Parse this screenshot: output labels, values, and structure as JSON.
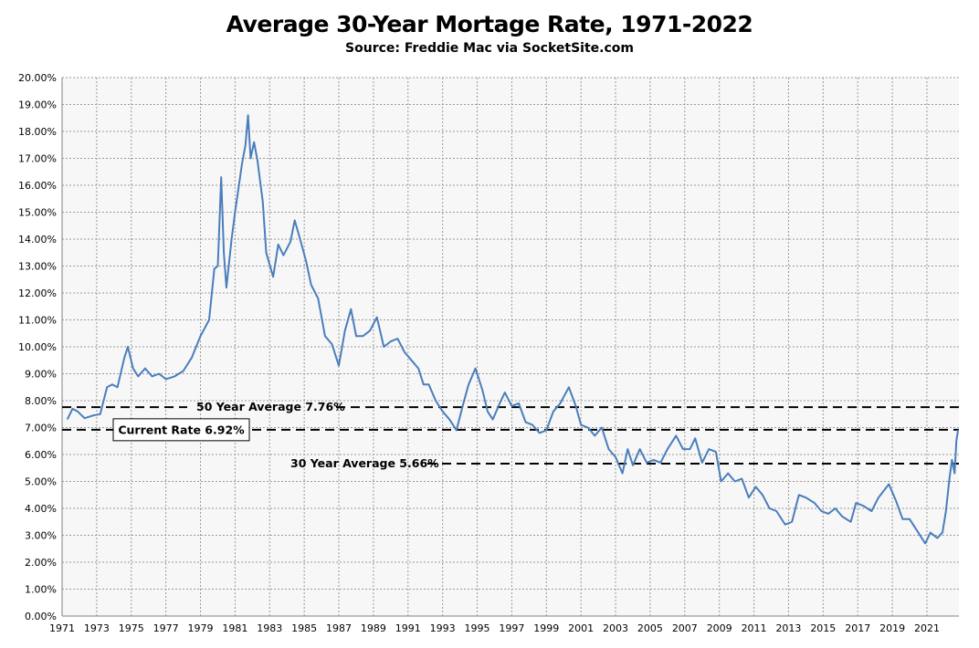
{
  "title": "Average 30-Year Mortage Rate, 1971-2022",
  "subtitle": "Source: Freddie Mac via SocketSite.com",
  "chart_data": {
    "type": "line",
    "title": "Average 30-Year Mortage Rate, 1971-2022",
    "subtitle": "Source: Freddie Mac via SocketSite.com",
    "xlabel": "",
    "ylabel": "",
    "xlim": [
      1971,
      2022.85
    ],
    "ylim": [
      0,
      20
    ],
    "grid": true,
    "y_ticks": [
      "0.00%",
      "1.00%",
      "2.00%",
      "3.00%",
      "4.00%",
      "5.00%",
      "6.00%",
      "7.00%",
      "8.00%",
      "9.00%",
      "10.00%",
      "11.00%",
      "12.00%",
      "13.00%",
      "14.00%",
      "15.00%",
      "16.00%",
      "17.00%",
      "18.00%",
      "19.00%",
      "20.00%"
    ],
    "x_ticks": [
      "1971",
      "1973",
      "1975",
      "1977",
      "1979",
      "1981",
      "1983",
      "1985",
      "1987",
      "1989",
      "1991",
      "1993",
      "1995",
      "1997",
      "1999",
      "2001",
      "2003",
      "2005",
      "2007",
      "2009",
      "2011",
      "2013",
      "2015",
      "2017",
      "2019",
      "2021"
    ],
    "line_color": "#4a7ebb",
    "series": [
      {
        "name": "",
        "points": [
          [
            1971.3,
            7.3
          ],
          [
            1971.6,
            7.7
          ],
          [
            1971.9,
            7.6
          ],
          [
            1972.3,
            7.35
          ],
          [
            1972.8,
            7.45
          ],
          [
            1973.2,
            7.5
          ],
          [
            1973.6,
            8.5
          ],
          [
            1973.9,
            8.6
          ],
          [
            1974.2,
            8.5
          ],
          [
            1974.6,
            9.6
          ],
          [
            1974.8,
            10.0
          ],
          [
            1975.1,
            9.2
          ],
          [
            1975.4,
            8.9
          ],
          [
            1975.8,
            9.2
          ],
          [
            1976.2,
            8.9
          ],
          [
            1976.6,
            9.0
          ],
          [
            1977.0,
            8.8
          ],
          [
            1977.5,
            8.9
          ],
          [
            1978.0,
            9.1
          ],
          [
            1978.5,
            9.6
          ],
          [
            1979.0,
            10.4
          ],
          [
            1979.5,
            11.0
          ],
          [
            1979.8,
            12.9
          ],
          [
            1980.0,
            13.0
          ],
          [
            1980.2,
            16.3
          ],
          [
            1980.35,
            13.5
          ],
          [
            1980.5,
            12.2
          ],
          [
            1980.8,
            14.0
          ],
          [
            1981.0,
            15.0
          ],
          [
            1981.4,
            16.8
          ],
          [
            1981.6,
            17.5
          ],
          [
            1981.75,
            18.6
          ],
          [
            1981.9,
            17.0
          ],
          [
            1982.1,
            17.6
          ],
          [
            1982.3,
            16.9
          ],
          [
            1982.6,
            15.4
          ],
          [
            1982.8,
            13.5
          ],
          [
            1983.2,
            12.6
          ],
          [
            1983.5,
            13.8
          ],
          [
            1983.8,
            13.4
          ],
          [
            1984.2,
            13.9
          ],
          [
            1984.45,
            14.7
          ],
          [
            1984.8,
            13.9
          ],
          [
            1985.1,
            13.2
          ],
          [
            1985.4,
            12.3
          ],
          [
            1985.8,
            11.8
          ],
          [
            1986.2,
            10.4
          ],
          [
            1986.6,
            10.1
          ],
          [
            1987.0,
            9.3
          ],
          [
            1987.35,
            10.6
          ],
          [
            1987.7,
            11.4
          ],
          [
            1988.0,
            10.4
          ],
          [
            1988.4,
            10.4
          ],
          [
            1988.8,
            10.6
          ],
          [
            1989.2,
            11.1
          ],
          [
            1989.6,
            10.0
          ],
          [
            1990.0,
            10.2
          ],
          [
            1990.4,
            10.3
          ],
          [
            1990.8,
            9.8
          ],
          [
            1991.2,
            9.5
          ],
          [
            1991.6,
            9.2
          ],
          [
            1991.9,
            8.6
          ],
          [
            1992.2,
            8.6
          ],
          [
            1992.6,
            8.0
          ],
          [
            1993.0,
            7.6
          ],
          [
            1993.4,
            7.3
          ],
          [
            1993.8,
            6.9
          ],
          [
            1994.2,
            7.9
          ],
          [
            1994.5,
            8.6
          ],
          [
            1994.9,
            9.2
          ],
          [
            1995.3,
            8.4
          ],
          [
            1995.6,
            7.6
          ],
          [
            1995.9,
            7.3
          ],
          [
            1996.3,
            7.9
          ],
          [
            1996.6,
            8.3
          ],
          [
            1997.0,
            7.8
          ],
          [
            1997.4,
            7.9
          ],
          [
            1997.8,
            7.2
          ],
          [
            1998.2,
            7.1
          ],
          [
            1998.6,
            6.8
          ],
          [
            1999.0,
            6.9
          ],
          [
            1999.4,
            7.6
          ],
          [
            1999.8,
            7.9
          ],
          [
            2000.3,
            8.5
          ],
          [
            2000.7,
            7.8
          ],
          [
            2001.0,
            7.1
          ],
          [
            2001.4,
            7.0
          ],
          [
            2001.8,
            6.7
          ],
          [
            2002.2,
            7.0
          ],
          [
            2002.6,
            6.2
          ],
          [
            2003.0,
            5.9
          ],
          [
            2003.4,
            5.3
          ],
          [
            2003.7,
            6.2
          ],
          [
            2004.0,
            5.6
          ],
          [
            2004.4,
            6.2
          ],
          [
            2004.8,
            5.7
          ],
          [
            2005.2,
            5.8
          ],
          [
            2005.6,
            5.7
          ],
          [
            2006.0,
            6.2
          ],
          [
            2006.5,
            6.7
          ],
          [
            2006.9,
            6.2
          ],
          [
            2007.3,
            6.2
          ],
          [
            2007.6,
            6.6
          ],
          [
            2008.0,
            5.7
          ],
          [
            2008.4,
            6.2
          ],
          [
            2008.8,
            6.1
          ],
          [
            2009.1,
            5.0
          ],
          [
            2009.5,
            5.3
          ],
          [
            2009.9,
            5.0
          ],
          [
            2010.3,
            5.1
          ],
          [
            2010.7,
            4.4
          ],
          [
            2011.1,
            4.8
          ],
          [
            2011.5,
            4.5
          ],
          [
            2011.9,
            4.0
          ],
          [
            2012.3,
            3.9
          ],
          [
            2012.8,
            3.4
          ],
          [
            2013.2,
            3.5
          ],
          [
            2013.6,
            4.5
          ],
          [
            2014.0,
            4.4
          ],
          [
            2014.5,
            4.2
          ],
          [
            2014.9,
            3.9
          ],
          [
            2015.3,
            3.8
          ],
          [
            2015.7,
            4.0
          ],
          [
            2016.1,
            3.7
          ],
          [
            2016.6,
            3.5
          ],
          [
            2016.9,
            4.2
          ],
          [
            2017.3,
            4.1
          ],
          [
            2017.8,
            3.9
          ],
          [
            2018.2,
            4.4
          ],
          [
            2018.8,
            4.9
          ],
          [
            2019.2,
            4.3
          ],
          [
            2019.6,
            3.6
          ],
          [
            2020.0,
            3.6
          ],
          [
            2020.4,
            3.2
          ],
          [
            2020.9,
            2.7
          ],
          [
            2021.2,
            3.1
          ],
          [
            2021.6,
            2.9
          ],
          [
            2021.9,
            3.1
          ],
          [
            2022.1,
            3.9
          ],
          [
            2022.3,
            5.1
          ],
          [
            2022.45,
            5.8
          ],
          [
            2022.6,
            5.3
          ],
          [
            2022.7,
            6.5
          ],
          [
            2022.8,
            6.92
          ]
        ]
      }
    ],
    "reference_lines": [
      {
        "label": "50 Year Average 7.76%",
        "value": 7.76
      },
      {
        "label": "Current Rate 6.92%",
        "value": 6.92
      },
      {
        "label": "30 Year Average 5.66%",
        "value": 5.66
      }
    ]
  }
}
